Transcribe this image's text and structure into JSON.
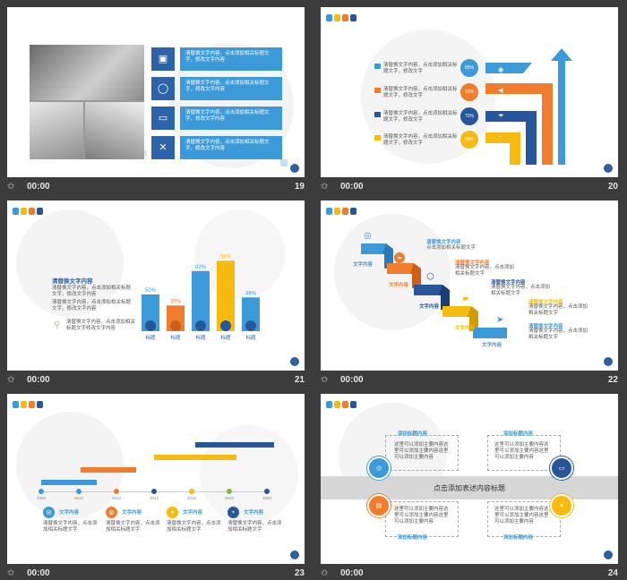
{
  "footers": [
    {
      "time": "00:00",
      "num": "19"
    },
    {
      "time": "00:00",
      "num": "20"
    },
    {
      "time": "00:00",
      "num": "21"
    },
    {
      "time": "00:00",
      "num": "22"
    },
    {
      "time": "00:00",
      "num": "23"
    },
    {
      "time": "00:00",
      "num": "24"
    }
  ],
  "s19": {
    "items": [
      "清替换文字内容，点击添加相关标题文字，修改文字内容",
      "清替换文字内容，点击添加相关标题文字，修改文字内容",
      "清替换文字内容，点击添加相关标题文字，修改文字内容",
      "清替换文字内容，点击添加相关标题文字，修改文字内容"
    ]
  },
  "s20": {
    "texts": [
      "清替换文字内容，点击添加相关标题文字，修改文字",
      "清替换文字内容，点击添加相关标题文字，修改文字",
      "清替换文字内容，点击添加相关标题文字，修改文字",
      "清替换文字内容，点击添加相关标题文字，修改文字"
    ],
    "pcts": [
      "85%",
      "52%",
      "70%",
      "45%"
    ],
    "colors": [
      "#3d9ad9",
      "#ef7d2d",
      "#27569b",
      "#f7bb10"
    ]
  },
  "s21": {
    "title": "清替换文字内容",
    "para1": "清替换文字内容，点击添加相关标题文字，修改文字内容",
    "para2": "清替换文字内容，点击添加相关标题文字，修改文字内容",
    "note": "清替换文字内容，点击添加相关标题文字修改文字内容",
    "chart_data": {
      "type": "bar",
      "categories": [
        "标题",
        "标题",
        "标题",
        "标题",
        "标题"
      ],
      "values": [
        50,
        35,
        82,
        96,
        46
      ],
      "labels": [
        "50%",
        "35%",
        "82%",
        "96%",
        "46%"
      ],
      "colors": [
        "#3d9ad9",
        "#ef7d2d",
        "#3d9ad9",
        "#f7bb10",
        "#3d9ad9"
      ],
      "ylim": [
        0,
        100
      ]
    }
  },
  "s22": {
    "steps": [
      {
        "title": "清替换文字内容",
        "body": "点击添加相关标题文字",
        "label": "文字内容"
      },
      {
        "title": "清替换文字内容",
        "body": "清替换文字内容，点击添加相关标题文字",
        "label": "文字内容"
      },
      {
        "title": "清替换文字内容",
        "body": "清替换文字内容，点击添加相关标题文字",
        "label": "文字内容"
      },
      {
        "title": "清替换文字内容",
        "body": "清替换文字内容，点击添加相关标题文字",
        "label": "文字内容"
      },
      {
        "title": "清替换文字内容",
        "body": "清替换文字内容，点击添加相关标题文字",
        "label": "文字内容"
      }
    ]
  },
  "s23": {
    "years": [
      "2008",
      "2010",
      "2012",
      "2014",
      "2016",
      "2018",
      "2020"
    ],
    "items": [
      {
        "title": "文字内容",
        "body": "清替换文字内容，点击添加相关标题文字"
      },
      {
        "title": "文字内容",
        "body": "清替换文字内容，点击添加相关标题文字"
      },
      {
        "title": "文字内容",
        "body": "清替换文字内容，点击添加相关标题文字"
      },
      {
        "title": "文字内容",
        "body": "清替换文字内容，点击添加相关标题文字"
      }
    ]
  },
  "s24": {
    "center": "点击添加表述内容标题",
    "heads": [
      "添加标题内容",
      "添加标题内容",
      "添加标题内容",
      "添加标题内容"
    ],
    "body": "这里可以添加主要内容这里可以添加主要内容这里可以添加主要内容"
  }
}
